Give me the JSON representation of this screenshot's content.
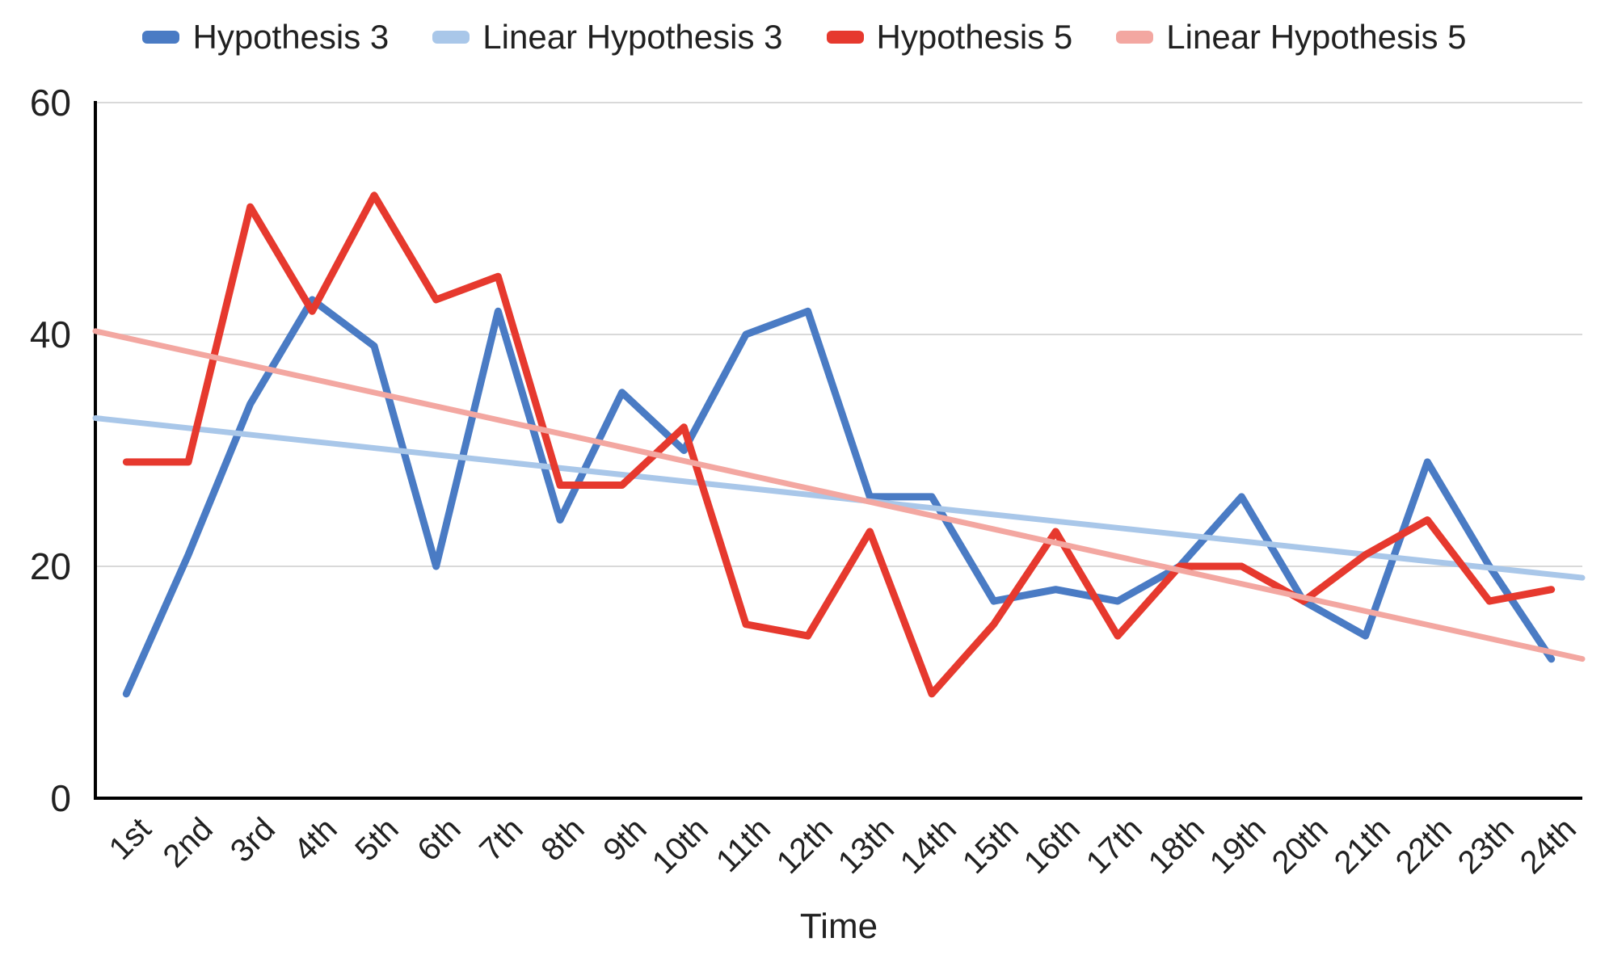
{
  "colors": {
    "hypothesis_3": "#4a7bc4",
    "linear_hypothesis_3": "#a9c7e9",
    "hypothesis_5": "#e6392e",
    "linear_hypothesis_5": "#f3a7a1",
    "gridline": "#d9d9d9",
    "axis": "#000000",
    "text": "#212121",
    "background": "#ffffff"
  },
  "chart_data": {
    "type": "line",
    "title": "",
    "xlabel": "Time",
    "ylabel": "",
    "categories": [
      "1st",
      "2nd",
      "3rd",
      "4th",
      "5th",
      "6th",
      "7th",
      "8th",
      "9th",
      "10th",
      "11th",
      "12th",
      "13th",
      "14th",
      "15th",
      "16th",
      "17th",
      "18th",
      "19th",
      "20th",
      "21th",
      "22th",
      "23th",
      "24th"
    ],
    "yticks": [
      0,
      20,
      40,
      60
    ],
    "ylim": [
      0,
      60
    ],
    "grid": "horizontal gridlines at 20, 40, 60; black baseline at 0",
    "legend_position": "top",
    "series": [
      {
        "name": "Hypothesis 3",
        "kind": "line",
        "color_key": "hypothesis_3",
        "stroke_width": 9,
        "values": [
          9,
          21,
          34,
          43,
          39,
          20,
          42,
          24,
          35,
          30,
          40,
          42,
          26,
          26,
          17,
          18,
          17,
          20,
          26,
          17,
          14,
          29,
          20,
          12
        ]
      },
      {
        "name": "Linear Hypothesis 3",
        "kind": "trendline",
        "color_key": "linear_hypothesis_3",
        "stroke_width": 7,
        "value_at_1st": 32.5,
        "value_at_24th": 19.3,
        "extends_to_plot_edges": true
      },
      {
        "name": "Hypothesis 5",
        "kind": "line",
        "color_key": "hypothesis_5",
        "stroke_width": 9,
        "values": [
          29,
          29,
          51,
          42,
          52,
          43,
          45,
          27,
          27,
          32,
          15,
          14,
          23,
          9,
          15,
          23,
          14,
          20,
          20,
          17,
          21,
          24,
          17,
          18
        ]
      },
      {
        "name": "Linear Hypothesis 5",
        "kind": "trendline",
        "color_key": "linear_hypothesis_5",
        "stroke_width": 7,
        "value_at_1st": 39.7,
        "value_at_24th": 12.6,
        "extends_to_plot_edges": true
      }
    ]
  }
}
